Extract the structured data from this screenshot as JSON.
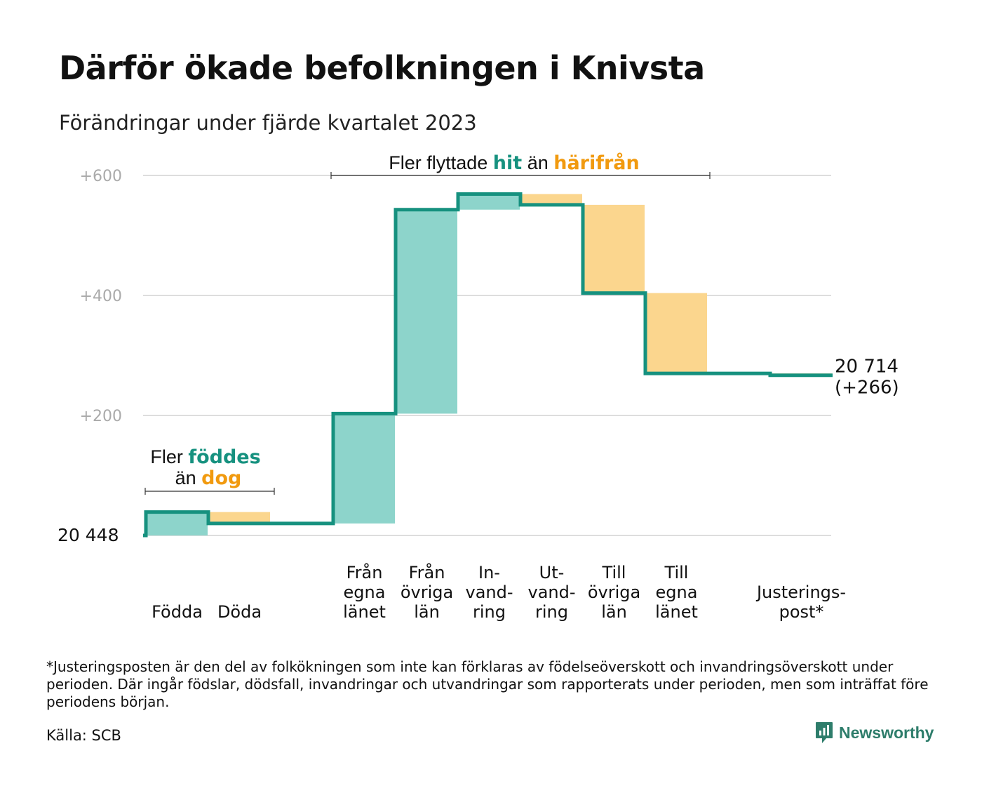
{
  "title": "Därför ökade befolkningen i Knivsta",
  "subtitle": "Förändringar under fjärde kvartalet 2023",
  "footnote": "*Justeringsposten är den del av folkökningen som inte kan förklaras av födelseöverskott och invandringsöverskott under perioden. Där ingår födslar, dödsfall, invandringar och utvandringar som rapporterats under perioden, men som inträffat före periodens början.",
  "source": "Källa: SCB",
  "brand": "Newsworthy",
  "colors": {
    "increase": "#8dd4cb",
    "decrease": "#fbd68e",
    "line": "#16917f",
    "teal_text": "#16917f",
    "orange_text": "#f19a0f",
    "grid": "#dddddd",
    "tick_text": "#aaaaaa"
  },
  "chart_data": {
    "type": "bar",
    "subtype": "waterfall",
    "start_value": 20448,
    "start_label": "20  448",
    "end_label": "20 714",
    "end_change_label": "(+266)",
    "ylim": [
      0,
      600
    ],
    "yticks": [
      {
        "value": 200,
        "label": "+200"
      },
      {
        "value": 400,
        "label": "+400"
      },
      {
        "value": 600,
        "label": "+600"
      }
    ],
    "grid": true,
    "steps": [
      {
        "label_lines": [
          "Födda"
        ],
        "change": 39
      },
      {
        "label_lines": [
          "Döda"
        ],
        "change": -19
      },
      {
        "label_lines": [],
        "change": 0
      },
      {
        "label_lines": [
          "Från",
          "egna",
          "länet"
        ],
        "change": 183
      },
      {
        "label_lines": [
          "Från",
          "övriga",
          "län"
        ],
        "change": 340
      },
      {
        "label_lines": [
          "In-",
          "vand-",
          "ring"
        ],
        "change": 26
      },
      {
        "label_lines": [
          "Ut-",
          "vand-",
          "ring"
        ],
        "change": -18
      },
      {
        "label_lines": [
          "Till",
          "övriga",
          "län"
        ],
        "change": -147
      },
      {
        "label_lines": [
          "Till",
          "egna",
          "länet"
        ],
        "change": -134
      },
      {
        "label_lines": [],
        "change": 0
      },
      {
        "label_lines": [
          "Justerings-",
          "post*"
        ],
        "change": -3
      }
    ],
    "annotations": [
      {
        "id": "births",
        "line1": [
          "Fler ",
          "föddes"
        ],
        "line2": [
          "än ",
          "dog"
        ]
      },
      {
        "id": "migration",
        "line1": [
          "Fler flyttade ",
          "hit",
          " än ",
          "härifrån"
        ]
      }
    ]
  }
}
